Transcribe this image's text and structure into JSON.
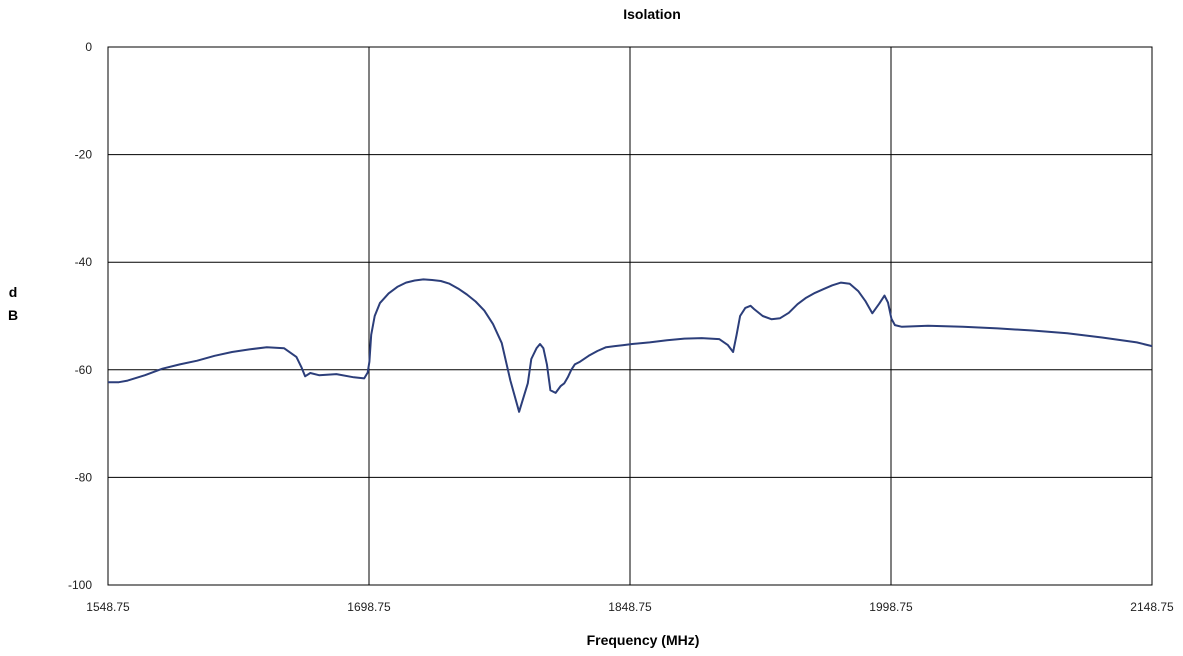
{
  "chart_data": {
    "type": "line",
    "title": "Isolation",
    "xlabel": "Frequency (MHz)",
    "ylabel": [
      "d",
      "B"
    ],
    "xlim": [
      1548.75,
      2148.75
    ],
    "ylim": [
      -100,
      0
    ],
    "x_ticks": [
      1548.75,
      1698.75,
      1848.75,
      1998.75,
      2148.75
    ],
    "x_tick_labels": [
      "1548.75",
      "1698.75",
      "1848.75",
      "1998.75",
      "2148.75"
    ],
    "y_ticks": [
      0,
      -20,
      -40,
      -60,
      -80,
      -100
    ],
    "y_tick_labels": [
      "0",
      "-20",
      "-40",
      "-60",
      "-80",
      "-100"
    ],
    "grid": true,
    "legend": "none",
    "series": [
      {
        "color": "#2c3e7a",
        "x": [
          1548.75,
          1555,
          1560,
          1570,
          1580,
          1590,
          1600,
          1610,
          1620,
          1630,
          1640,
          1650,
          1657,
          1660,
          1662,
          1665,
          1670,
          1680,
          1690,
          1696,
          1698,
          1699,
          1700,
          1702,
          1705,
          1710,
          1715,
          1720,
          1725,
          1730,
          1735,
          1740,
          1745,
          1750,
          1755,
          1760,
          1765,
          1770,
          1775,
          1780,
          1785,
          1790,
          1792,
          1795,
          1797,
          1799,
          1801,
          1803,
          1806,
          1809,
          1811,
          1813,
          1815,
          1817,
          1820,
          1825,
          1830,
          1835,
          1840,
          1845,
          1850,
          1860,
          1870,
          1880,
          1890,
          1900,
          1905,
          1908,
          1910,
          1912,
          1915,
          1918,
          1920,
          1925,
          1930,
          1935,
          1940,
          1945,
          1950,
          1955,
          1960,
          1965,
          1970,
          1975,
          1980,
          1984,
          1988,
          1992,
          1995,
          1997,
          1999,
          2001,
          2005,
          2020,
          2040,
          2060,
          2080,
          2100,
          2120,
          2140,
          2148.75
        ],
        "y": [
          -62.3,
          -62.3,
          -62,
          -61,
          -59.8,
          -59,
          -58.3,
          -57.4,
          -56.7,
          -56.2,
          -55.8,
          -56,
          -57.6,
          -59.6,
          -61.2,
          -60.6,
          -61,
          -60.8,
          -61.4,
          -61.6,
          -60.5,
          -58.5,
          -53.5,
          -50,
          -47.6,
          -45.8,
          -44.6,
          -43.8,
          -43.4,
          -43.2,
          -43.3,
          -43.5,
          -44,
          -44.9,
          -46,
          -47.3,
          -49,
          -51.5,
          -55,
          -62,
          -67.8,
          -62.5,
          -58,
          -56,
          -55.2,
          -56,
          -59,
          -63.8,
          -64.3,
          -63,
          -62.5,
          -61.4,
          -60,
          -59,
          -58.5,
          -57.4,
          -56.5,
          -55.8,
          -55.6,
          -55.4,
          -55.2,
          -54.9,
          -54.5,
          -54.2,
          -54.1,
          -54.3,
          -55.4,
          -56.7,
          -53.5,
          -50,
          -48.5,
          -48.1,
          -48.7,
          -50,
          -50.6,
          -50.4,
          -49.4,
          -47.8,
          -46.6,
          -45.7,
          -45,
          -44.3,
          -43.8,
          -44,
          -45.4,
          -47.2,
          -49.5,
          -47.7,
          -46.2,
          -47.5,
          -50.5,
          -51.7,
          -52,
          -51.8,
          -52,
          -52.3,
          -52.7,
          -53.2,
          -54,
          -54.9,
          -55.6
        ]
      }
    ]
  }
}
